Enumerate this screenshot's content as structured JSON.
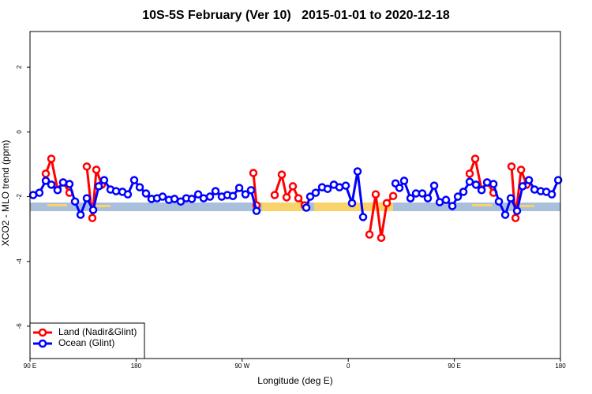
{
  "chart_data": {
    "type": "line",
    "title": "10S-5S February (Ver 10)   2015-01-01 to 2020-12-18",
    "x_label": "Longitude (deg E)",
    "y_label": "XCO2 - MLO trend (ppm)",
    "xlim": [
      90,
      540
    ],
    "ylim": [
      -7,
      3.1
    ],
    "xticks": [
      {
        "value": 90,
        "label": "90 E"
      },
      180,
      {
        "value": 270,
        "label": "90 W"
      },
      {
        "value": 360,
        "label": "0"
      },
      {
        "value": 450,
        "label": "90 E"
      },
      {
        "value": 540,
        "label": "180"
      }
    ],
    "yticks": [
      -6,
      -4,
      -2,
      0,
      2
    ],
    "legend": "bottom-left",
    "series": [
      {
        "name": "Land (Nadir&Glint)",
        "color": "#ff0000",
        "x": [
          103.4,
          108.1,
          113.4,
          118.1,
          123.5,
          130,
          138.2,
          142.9,
          146.3,
          150.9,
          200,
          279.5,
          282.2,
          290,
          297.6,
          303.6,
          307.7,
          313.0,
          317.7,
          323.1,
          350,
          378.0,
          383.3,
          388.0,
          392.7,
          398.1,
          450,
          463.0,
          467.7,
          473.1,
          477.8,
          483.2,
          490,
          498.5,
          501.9,
          506.6,
          511.3
        ],
        "values": [
          -1.29,
          -0.83,
          -1.78,
          -1.56,
          -1.88,
          null,
          -1.07,
          -2.66,
          -1.17,
          -1.63,
          null,
          -1.27,
          -2.27,
          null,
          -1.95,
          -1.32,
          -2.02,
          -1.68,
          -2.05,
          -2.27,
          null,
          -3.17,
          -1.93,
          -3.27,
          -2.2,
          -1.98,
          null,
          -1.29,
          -0.83,
          -1.78,
          -1.56,
          -1.88,
          null,
          -1.07,
          -2.66,
          -1.17,
          -1.63
        ]
      },
      {
        "name": "Ocean (Glint)",
        "color": "#0000ff",
        "x": [
          92.7,
          98.0,
          103.4,
          108.1,
          113.4,
          118.1,
          123.5,
          128.2,
          132.9,
          138.2,
          143.6,
          148.3,
          152.9,
          158.3,
          163.0,
          168.4,
          173.0,
          178.4,
          183.1,
          188.4,
          193.1,
          197.8,
          202.5,
          207.9,
          212.6,
          217.9,
          222.6,
          227.3,
          232.7,
          237.3,
          242.7,
          247.4,
          252.7,
          257.4,
          262.1,
          267.5,
          272.8,
          277.5,
          282.2,
          300,
          324.4,
          327.7,
          332.4,
          337.8,
          342.5,
          347.8,
          352.5,
          357.9,
          363.2,
          367.9,
          372.6,
          385,
          400.1,
          403.4,
          407.4,
          412.8,
          417.5,
          422.8,
          427.5,
          432.9,
          437.6,
          442.9,
          448.3,
          453.0,
          457.7,
          463.0,
          468.4,
          473.1,
          477.8,
          483.2,
          487.8,
          493.2,
          497.9,
          503.2,
          507.9,
          513.3,
          518.0,
          523.3,
          528.0,
          532.7,
          538.1
        ],
        "values": [
          -1.95,
          -1.88,
          -1.51,
          -1.63,
          -1.8,
          -1.56,
          -1.61,
          -2.15,
          -2.56,
          -2.05,
          -2.41,
          -1.68,
          -1.49,
          -1.78,
          -1.83,
          -1.85,
          -1.93,
          -1.49,
          -1.71,
          -1.9,
          -2.07,
          -2.05,
          -2.0,
          -2.1,
          -2.07,
          -2.15,
          -2.05,
          -2.07,
          -1.93,
          -2.05,
          -2.0,
          -1.83,
          -2.0,
          -1.95,
          -1.98,
          -1.73,
          -1.93,
          -1.8,
          -2.44,
          null,
          -2.34,
          -2.0,
          -1.88,
          -1.71,
          -1.76,
          -1.63,
          -1.71,
          -1.66,
          -2.2,
          -1.22,
          -2.63,
          null,
          -1.59,
          -1.73,
          -1.51,
          -2.05,
          -1.9,
          -1.9,
          -2.05,
          -1.66,
          -2.17,
          -2.1,
          -2.29,
          -2.0,
          -1.85,
          -1.54,
          -1.63,
          -1.8,
          -1.56,
          -1.61,
          -2.15,
          -2.56,
          -2.05,
          -2.44,
          -1.68,
          -1.49,
          -1.78,
          -1.83,
          -1.85,
          -1.93,
          -1.49
        ]
      }
    ]
  }
}
